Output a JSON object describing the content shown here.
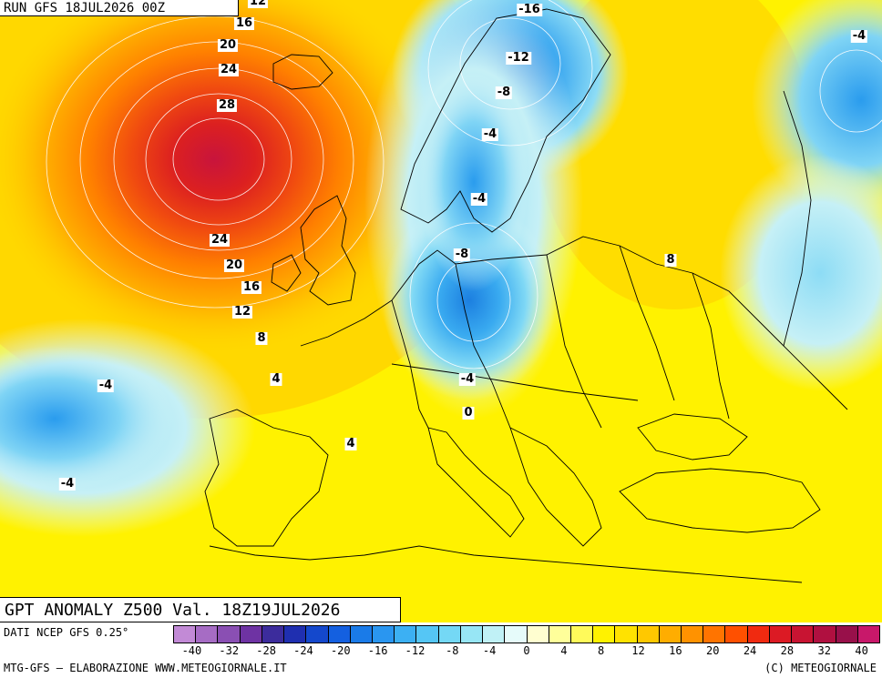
{
  "run_label": "RUN GFS 18JUL2026 00Z",
  "map_title": "GPT ANOMALY Z500 Val. 18Z19JUL2026",
  "source_label": "DATI NCEP GFS 0.25°",
  "credit_left": "MTG-GFS — ELABORAZIONE WWW.METEOGIORNALE.IT",
  "credit_right": "(C) METEOGIORNALE",
  "contour_labels": [
    "12",
    "16",
    "20",
    "24",
    "28",
    "24",
    "20",
    "16",
    "12",
    "8",
    "4",
    "-4",
    "-4",
    "4",
    "0",
    "-4",
    "-8",
    "-4",
    "-4",
    "-8",
    "-12",
    "-16",
    "8",
    "-4"
  ],
  "colorbar": {
    "ticks": [
      "-40",
      "-32",
      "-28",
      "-24",
      "-20",
      "-16",
      "-12",
      "-8",
      "-4",
      "0",
      "4",
      "8",
      "12",
      "16",
      "20",
      "24",
      "28",
      "32",
      "40"
    ],
    "colors": [
      "#c28ad6",
      "#a66cc4",
      "#8a4fb3",
      "#6e33a3",
      "#3c2c9c",
      "#1f2fb0",
      "#1448cc",
      "#1460e0",
      "#1a7be8",
      "#2a96f0",
      "#3cb0f3",
      "#55c6f5",
      "#74d8f5",
      "#97e6f5",
      "#c0f1f6",
      "#e6fbfa",
      "#fffed0",
      "#ffff9a",
      "#fffa5a",
      "#fff200",
      "#ffe200",
      "#ffc800",
      "#ffad00",
      "#ff9200",
      "#ff7400",
      "#ff5000",
      "#f02a10",
      "#dc1a24",
      "#c81432",
      "#b01040",
      "#98104a",
      "#c8186a"
    ]
  }
}
